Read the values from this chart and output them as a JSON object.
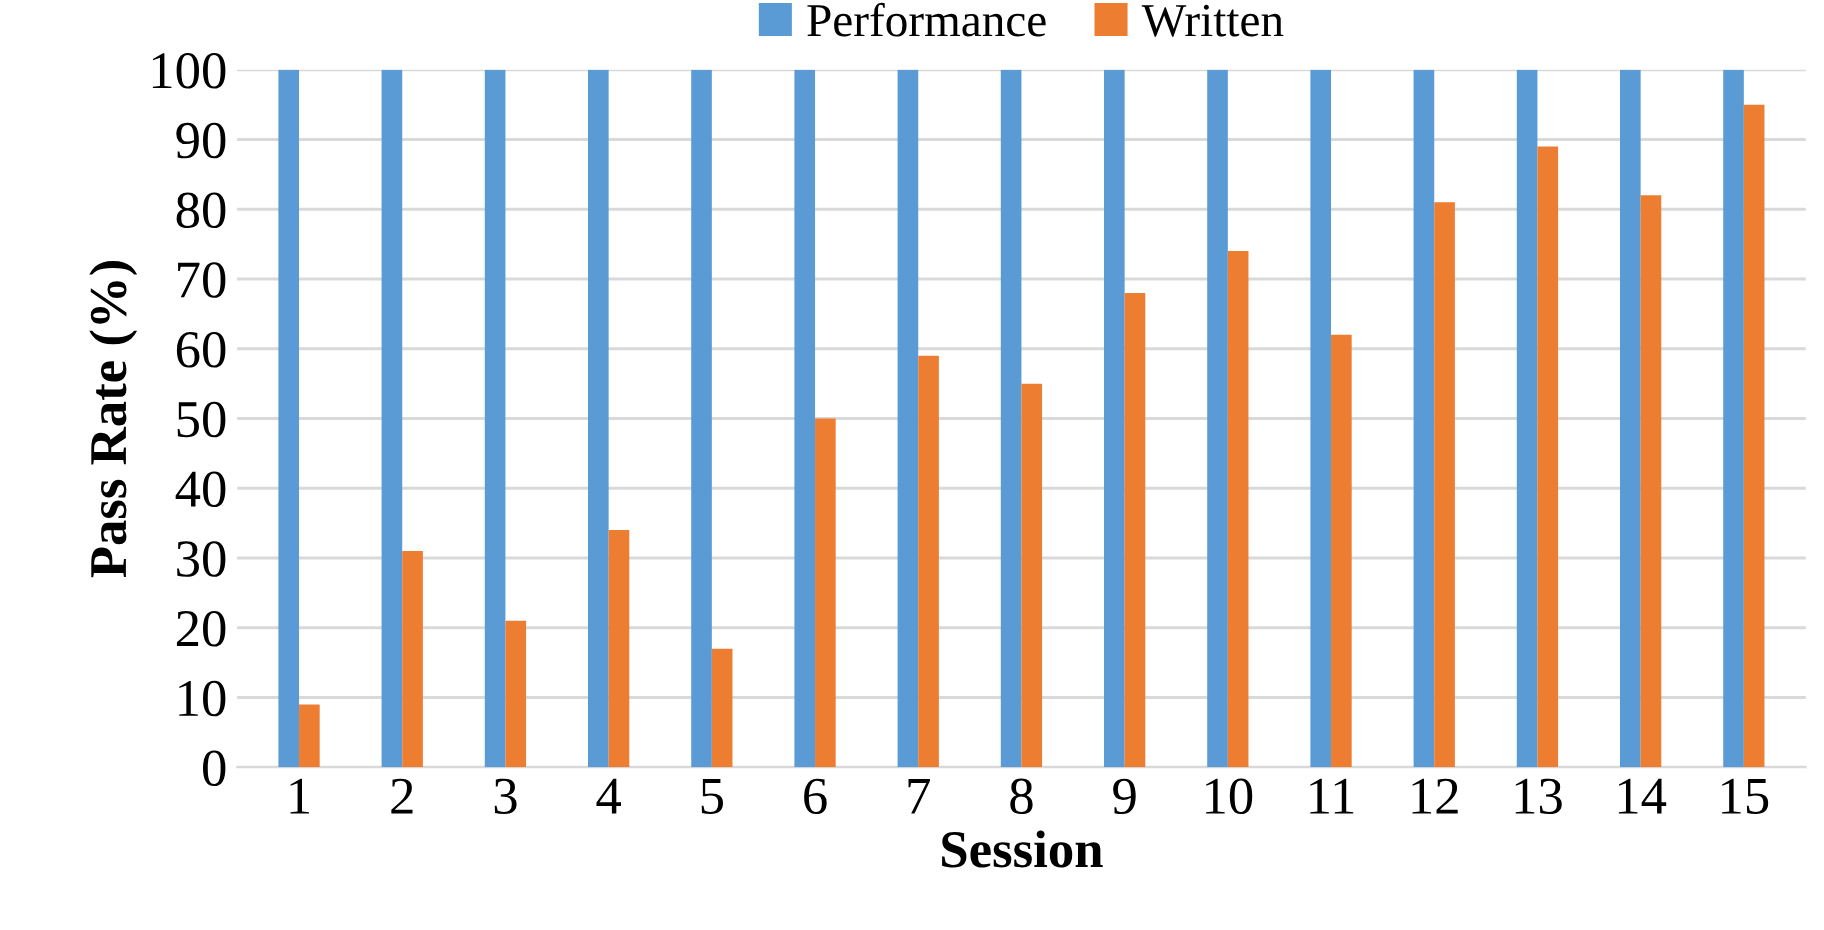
{
  "chart_data": {
    "type": "bar",
    "xlabel": "Session",
    "ylabel": "Pass Rate (%)",
    "categories": [
      "1",
      "2",
      "3",
      "4",
      "5",
      "6",
      "7",
      "8",
      "9",
      "10",
      "11",
      "12",
      "13",
      "14",
      "15"
    ],
    "series": [
      {
        "name": "Performance",
        "color": "#5b9bd5",
        "values": [
          100,
          100,
          100,
          100,
          100,
          100,
          100,
          100,
          100,
          100,
          100,
          100,
          100,
          100,
          100
        ]
      },
      {
        "name": "Written",
        "color": "#ed7d31",
        "values": [
          9,
          31,
          21,
          34,
          17,
          50,
          59,
          55,
          68,
          74,
          62,
          81,
          89,
          82,
          95
        ]
      }
    ],
    "ylim": [
      0,
      100
    ],
    "yticks": [
      0,
      10,
      20,
      30,
      40,
      50,
      60,
      70,
      80,
      90,
      100
    ],
    "grid": "y",
    "legend": "top"
  }
}
